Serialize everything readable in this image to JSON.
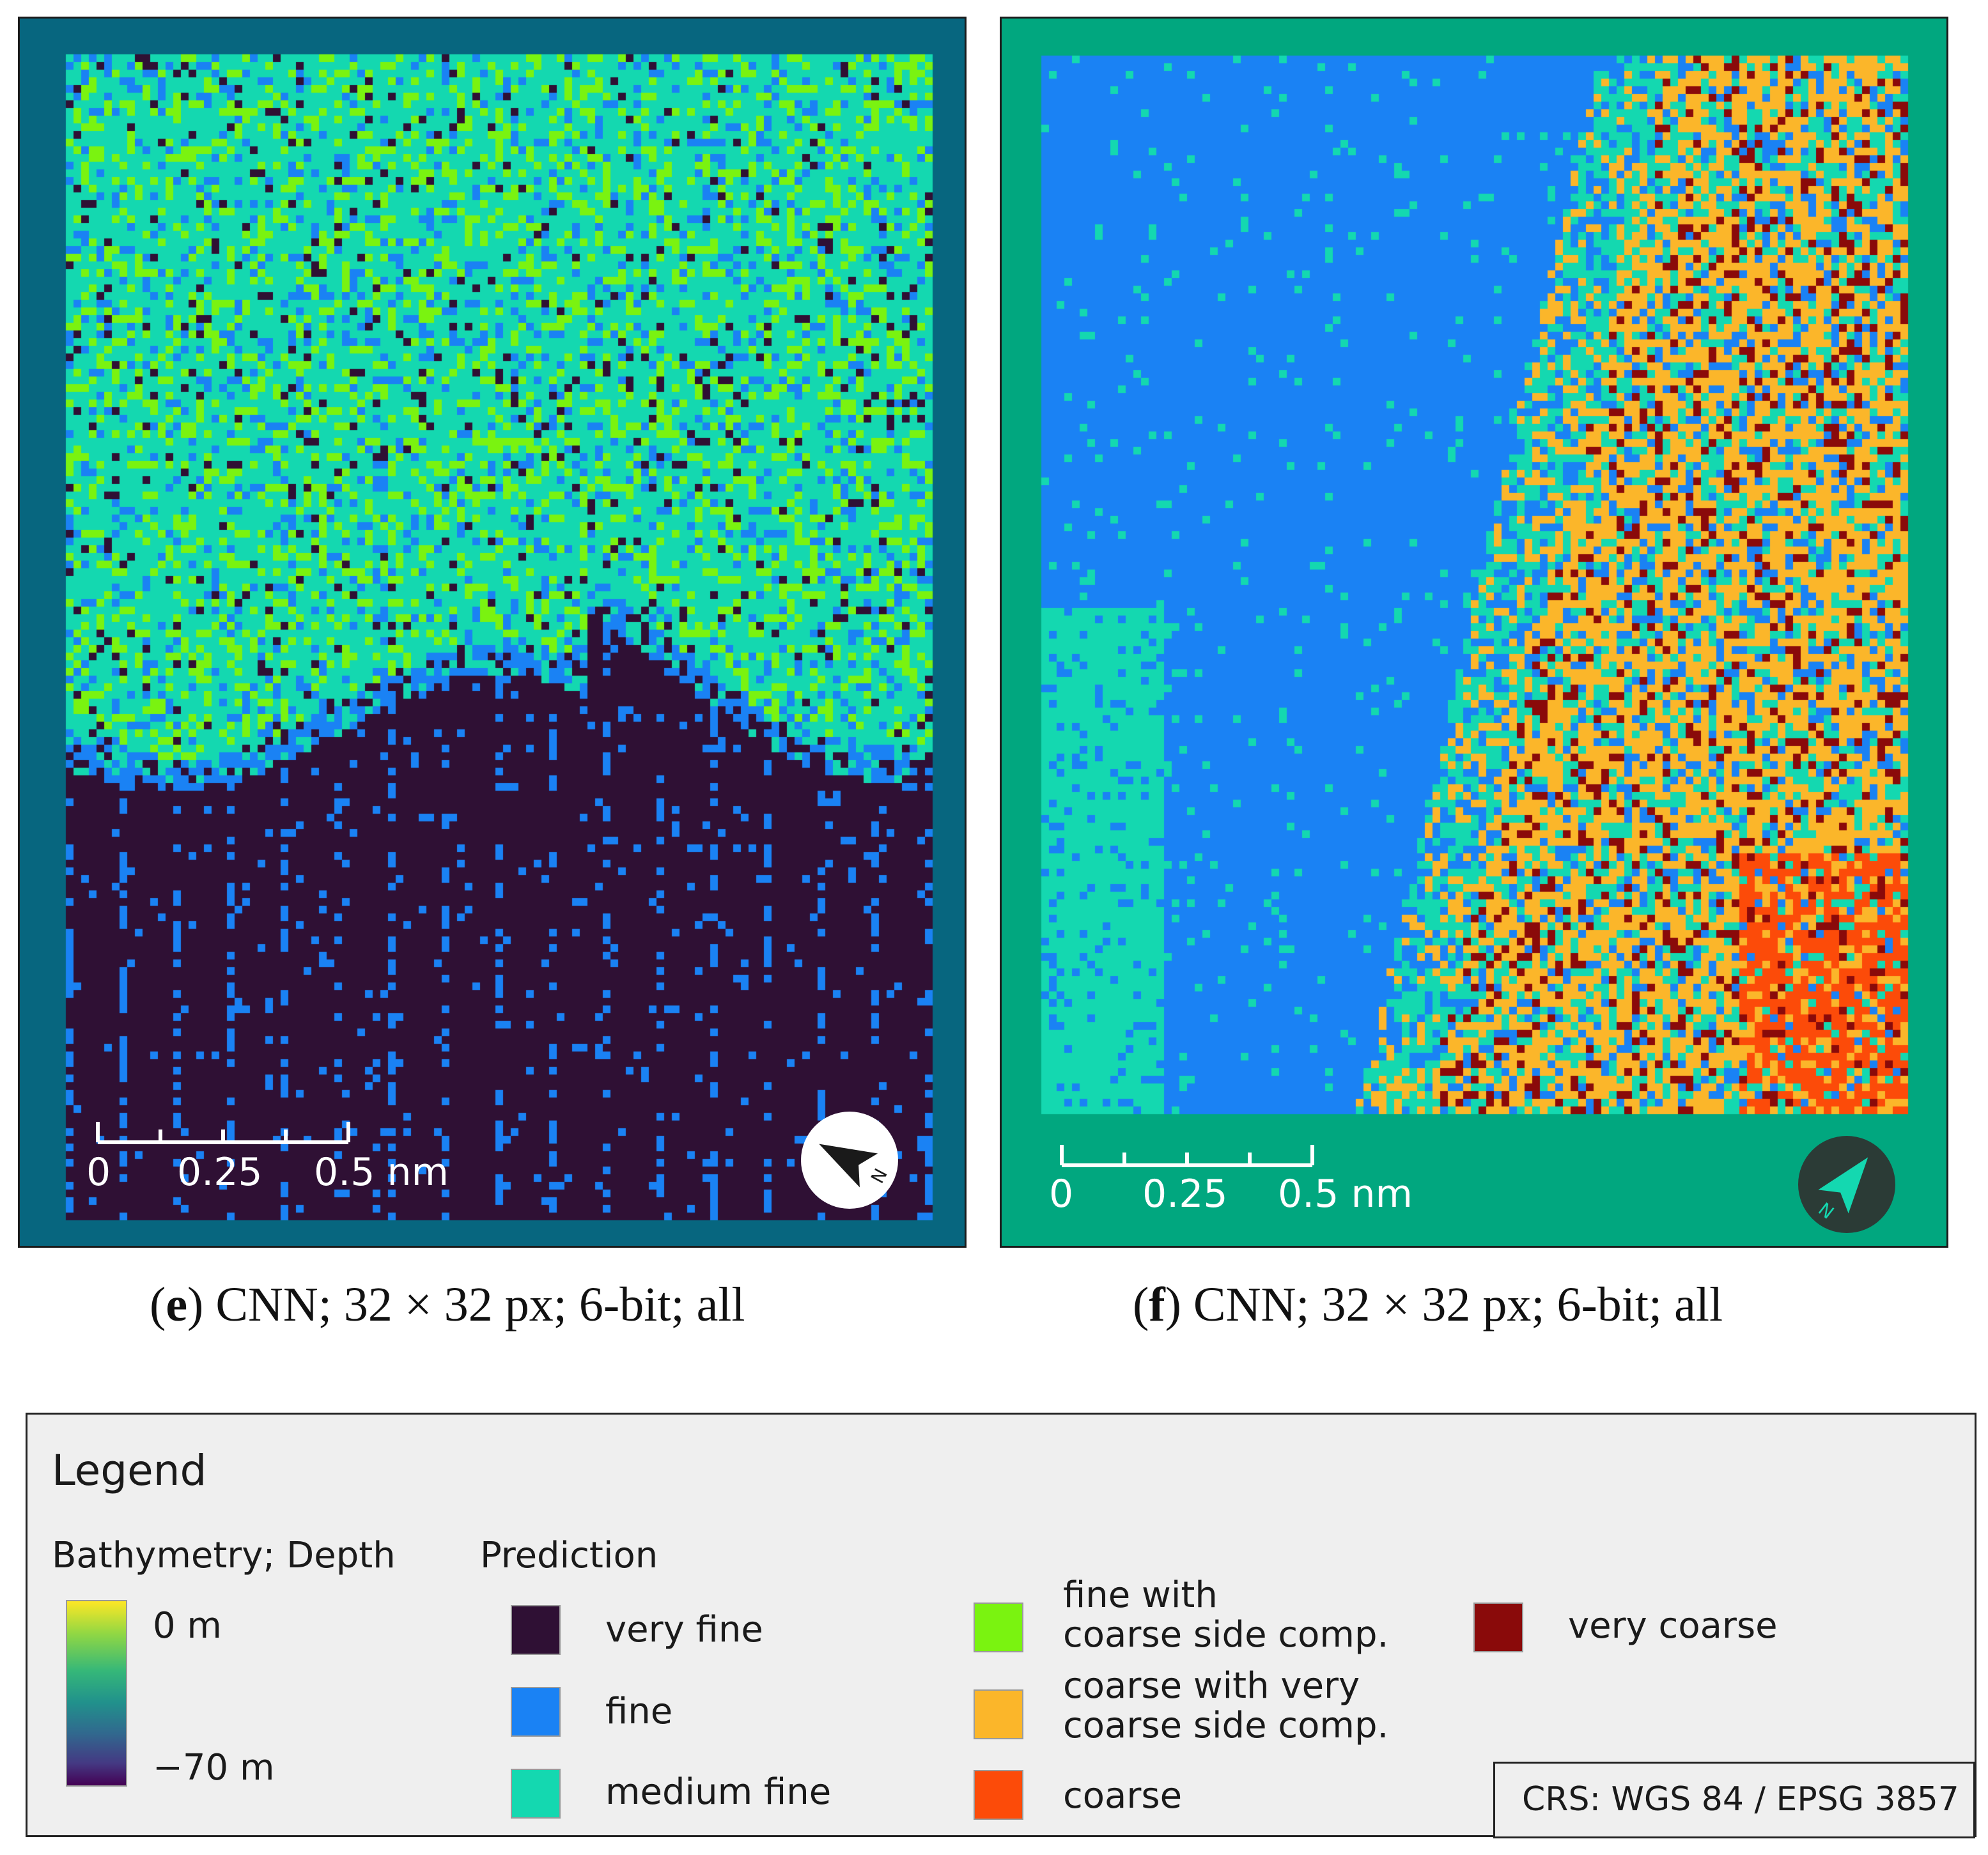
{
  "colors": {
    "very_fine": "#2f1034",
    "fine": "#1a82f4",
    "medium_fine": "#14d8b0",
    "fine_coarse_side": "#7af310",
    "coarse_very_coarse_side": "#fbb62a",
    "coarse": "#fc4b09",
    "very_coarse": "#8a0a0a",
    "frame_e": "#07667f",
    "frame_f": "#01a77f"
  },
  "panels": [
    {
      "id": "e",
      "caption_letter": "e",
      "caption_open": "(",
      "caption_text": ") CNN; 32 × 32 px; 6-bit; all",
      "scale": {
        "labels": [
          "0",
          "0.25",
          "0.5 nm"
        ]
      },
      "north_icon": "north-arrow-icon"
    },
    {
      "id": "f",
      "caption_letter": "f",
      "caption_open": "(",
      "caption_text": ") CNN; 32 × 32 px; 6-bit; all",
      "scale": {
        "labels": [
          "0",
          "0.25",
          "0.5 nm"
        ]
      },
      "north_icon": "north-arrow-icon"
    }
  ],
  "legend": {
    "title": "Legend",
    "bathymetry": {
      "title": "Bathymetry; Depth",
      "max_label": "0 m",
      "min_label": "−70 m"
    },
    "prediction": {
      "title": "Prediction",
      "classes": [
        {
          "label": "very fine",
          "color": "#2f1034"
        },
        {
          "label": "fine",
          "color": "#1a82f4"
        },
        {
          "label": "medium fine",
          "color": "#14d8b0"
        },
        {
          "label_lines": [
            "fine with",
            "coarse side comp."
          ],
          "color": "#7af310"
        },
        {
          "label_lines": [
            "coarse with very",
            "coarse side comp."
          ],
          "color": "#fbb62a"
        },
        {
          "label": "coarse",
          "color": "#fc4b09"
        },
        {
          "label": "very coarse",
          "color": "#8a0a0a"
        }
      ]
    },
    "crs": "CRS: WGS 84 / EPSG 3857"
  }
}
